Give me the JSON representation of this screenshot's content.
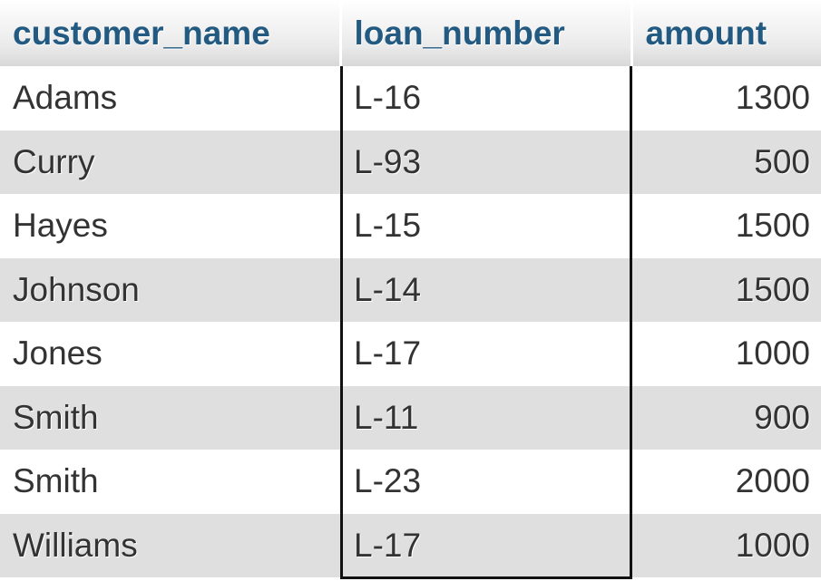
{
  "table": {
    "columns": [
      "customer_name",
      "loan_number",
      "amount"
    ],
    "rows": [
      {
        "customer_name": "Adams",
        "loan_number": "L-16",
        "amount": "1300"
      },
      {
        "customer_name": "Curry",
        "loan_number": "L-93",
        "amount": "500"
      },
      {
        "customer_name": "Hayes",
        "loan_number": "L-15",
        "amount": "1500"
      },
      {
        "customer_name": "Johnson",
        "loan_number": "L-14",
        "amount": "1500"
      },
      {
        "customer_name": "Jones",
        "loan_number": "L-17",
        "amount": "1000"
      },
      {
        "customer_name": "Smith",
        "loan_number": "L-11",
        "amount": "900"
      },
      {
        "customer_name": "Smith",
        "loan_number": "L-23",
        "amount": "2000"
      },
      {
        "customer_name": "Williams",
        "loan_number": "L-17",
        "amount": "1000"
      }
    ]
  },
  "colors": {
    "header_text": "#235a81",
    "cell_text": "#333333",
    "row_alt": "#dfdfdf",
    "column_highlight_border": "#111111"
  }
}
